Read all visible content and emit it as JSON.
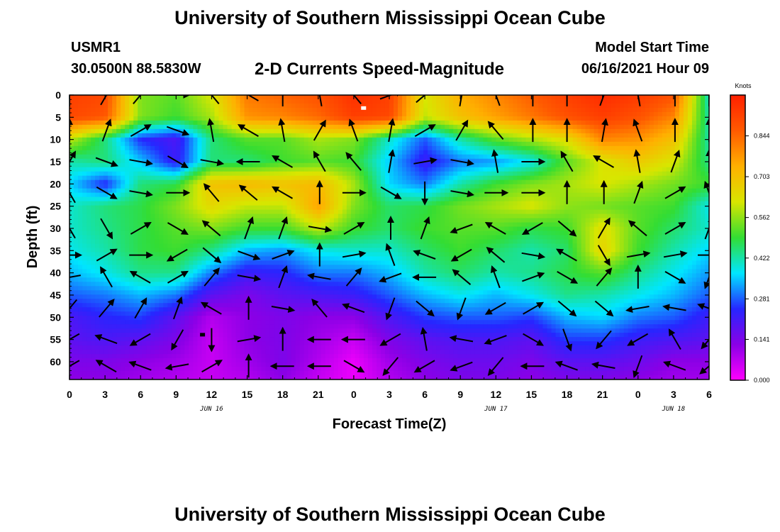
{
  "header": {
    "title": "University of Southern Mississippi Ocean Cube",
    "station": "USMR1",
    "coordinates": "30.0500N  88.5830W",
    "subtitle": "2-D Currents Speed-Magnitude",
    "model_start_label": "Model Start Time",
    "model_start_value": "06/16/2021 Hour 09"
  },
  "footer": {
    "title": "University of Southern Mississippi Ocean Cube"
  },
  "chart_data": {
    "type": "heatmap",
    "xlabel": "Forecast Time(Z)",
    "ylabel": "Depth (ft)",
    "x_ticks": [
      "0",
      "3",
      "6",
      "9",
      "12",
      "15",
      "18",
      "21",
      "0",
      "3",
      "6",
      "9",
      "12",
      "15",
      "18",
      "21",
      "0",
      "3",
      "6"
    ],
    "x_range_hours": [
      0,
      54
    ],
    "date_labels": [
      {
        "label": "JUN 16",
        "hour": 12
      },
      {
        "label": "JUN 17",
        "hour": 36
      },
      {
        "label": "JUN 18",
        "hour": 51
      }
    ],
    "y_ticks": [
      "0",
      "5",
      "10",
      "15",
      "20",
      "25",
      "30",
      "35",
      "40",
      "45",
      "50",
      "55",
      "60"
    ],
    "y_range_ft": [
      0,
      64
    ],
    "y_inverted": true,
    "colorbar": {
      "unit": "Knots",
      "ticks": [
        "0.000",
        "0.141",
        "0.281",
        "0.422",
        "0.562",
        "0.703",
        "0.844"
      ],
      "range": [
        0,
        0.985
      ],
      "colors": [
        "#ff00ff",
        "#8a00e6",
        "#2626ff",
        "#00e6ff",
        "#33dd33",
        "#d8e600",
        "#ffb000",
        "#ff5a00",
        "#ff2000"
      ]
    },
    "speed_grid": {
      "depths": [
        0,
        5,
        10,
        15,
        20,
        25,
        30,
        35,
        40,
        45,
        50,
        55,
        60,
        64
      ],
      "hours": [
        0,
        3,
        6,
        9,
        12,
        15,
        18,
        21,
        24,
        27,
        30,
        33,
        36,
        39,
        42,
        45,
        48,
        51,
        54
      ],
      "values": [
        [
          0.92,
          0.9,
          0.55,
          0.52,
          0.62,
          0.82,
          0.85,
          0.88,
          0.95,
          0.92,
          0.62,
          0.74,
          0.8,
          0.86,
          0.92,
          0.96,
          0.93,
          0.88,
          0.4
        ],
        [
          0.9,
          0.87,
          0.55,
          0.5,
          0.58,
          0.78,
          0.8,
          0.84,
          0.92,
          0.9,
          0.6,
          0.7,
          0.76,
          0.82,
          0.88,
          0.92,
          0.88,
          0.8,
          0.42
        ],
        [
          0.6,
          0.45,
          0.25,
          0.2,
          0.45,
          0.52,
          0.52,
          0.58,
          0.55,
          0.4,
          0.28,
          0.42,
          0.52,
          0.58,
          0.64,
          0.8,
          0.78,
          0.7,
          0.42
        ],
        [
          0.42,
          0.45,
          0.35,
          0.22,
          0.45,
          0.45,
          0.5,
          0.52,
          0.5,
          0.35,
          0.22,
          0.3,
          0.32,
          0.38,
          0.52,
          0.62,
          0.68,
          0.62,
          0.44
        ],
        [
          0.36,
          0.24,
          0.45,
          0.48,
          0.7,
          0.72,
          0.7,
          0.72,
          0.58,
          0.36,
          0.3,
          0.42,
          0.5,
          0.55,
          0.58,
          0.62,
          0.58,
          0.54,
          0.5
        ],
        [
          0.4,
          0.45,
          0.48,
          0.55,
          0.65,
          0.6,
          0.6,
          0.76,
          0.55,
          0.46,
          0.48,
          0.54,
          0.58,
          0.62,
          0.56,
          0.54,
          0.52,
          0.5,
          0.38
        ],
        [
          0.4,
          0.44,
          0.48,
          0.52,
          0.55,
          0.5,
          0.5,
          0.6,
          0.5,
          0.46,
          0.5,
          0.52,
          0.52,
          0.48,
          0.5,
          0.64,
          0.52,
          0.46,
          0.4
        ],
        [
          0.38,
          0.42,
          0.48,
          0.5,
          0.44,
          0.34,
          0.32,
          0.38,
          0.4,
          0.4,
          0.46,
          0.5,
          0.46,
          0.42,
          0.46,
          0.66,
          0.5,
          0.42,
          0.36
        ],
        [
          0.34,
          0.38,
          0.44,
          0.44,
          0.3,
          0.22,
          0.24,
          0.3,
          0.3,
          0.34,
          0.42,
          0.46,
          0.42,
          0.44,
          0.48,
          0.52,
          0.44,
          0.38,
          0.32
        ],
        [
          0.28,
          0.3,
          0.34,
          0.3,
          0.18,
          0.14,
          0.18,
          0.2,
          0.22,
          0.28,
          0.34,
          0.38,
          0.34,
          0.38,
          0.44,
          0.42,
          0.38,
          0.34,
          0.28
        ],
        [
          0.2,
          0.24,
          0.26,
          0.18,
          0.08,
          0.12,
          0.14,
          0.12,
          0.12,
          0.2,
          0.26,
          0.28,
          0.28,
          0.26,
          0.34,
          0.36,
          0.3,
          0.28,
          0.22
        ],
        [
          0.18,
          0.2,
          0.18,
          0.14,
          0.06,
          0.12,
          0.14,
          0.1,
          0.06,
          0.14,
          0.18,
          0.2,
          0.2,
          0.18,
          0.26,
          0.26,
          0.22,
          0.2,
          0.18
        ],
        [
          0.14,
          0.14,
          0.12,
          0.1,
          0.06,
          0.1,
          0.14,
          0.08,
          0.02,
          0.1,
          0.14,
          0.16,
          0.16,
          0.14,
          0.18,
          0.18,
          0.16,
          0.12,
          0.12
        ],
        [
          0.12,
          0.12,
          0.1,
          0.08,
          0.06,
          0.08,
          0.12,
          0.06,
          0.02,
          0.08,
          0.12,
          0.14,
          0.14,
          0.12,
          0.14,
          0.14,
          0.12,
          0.1,
          0.1
        ]
      ]
    },
    "vector_directions_deg": {
      "hours": [
        0,
        3,
        6,
        9,
        12,
        15,
        18,
        21,
        24,
        27,
        30,
        33,
        36,
        39,
        42,
        45,
        48,
        51,
        54
      ],
      "depths": [
        0,
        8,
        15,
        22,
        30,
        36,
        41,
        48,
        55,
        61
      ],
      "values": [
        [
          0,
          30,
          40,
          90,
          320,
          300,
          0,
          350,
          320,
          70,
          50,
          10,
          340,
          0,
          0,
          20,
          350,
          0,
          0
        ],
        [
          0,
          20,
          60,
          110,
          350,
          300,
          350,
          30,
          340,
          10,
          60,
          30,
          320,
          0,
          0,
          10,
          340,
          0,
          0
        ],
        [
          30,
          110,
          100,
          120,
          100,
          270,
          300,
          330,
          320,
          10,
          80,
          100,
          350,
          90,
          330,
          300,
          350,
          20,
          0
        ],
        [
          330,
          120,
          100,
          90,
          320,
          310,
          300,
          0,
          90,
          120,
          180,
          100,
          90,
          90,
          0,
          0,
          20,
          60,
          340
        ],
        [
          330,
          150,
          60,
          120,
          310,
          20,
          20,
          100,
          60,
          0,
          20,
          250,
          300,
          240,
          130,
          30,
          310,
          60,
          20
        ],
        [
          90,
          60,
          90,
          240,
          130,
          110,
          70,
          0,
          80,
          340,
          290,
          240,
          310,
          100,
          300,
          150,
          80,
          80,
          90
        ],
        [
          260,
          330,
          300,
          60,
          40,
          100,
          20,
          280,
          40,
          250,
          270,
          310,
          340,
          70,
          120,
          40,
          0,
          120,
          200
        ],
        [
          220,
          40,
          30,
          20,
          300,
          0,
          100,
          320,
          290,
          200,
          130,
          200,
          240,
          60,
          130,
          130,
          260,
          280,
          290
        ],
        [
          240,
          290,
          240,
          210,
          180,
          80,
          0,
          270,
          270,
          240,
          350,
          280,
          250,
          120,
          160,
          220,
          240,
          330,
          220
        ],
        [
          240,
          300,
          290,
          260,
          60,
          0,
          270,
          270,
          120,
          220,
          240,
          250,
          220,
          270,
          290,
          280,
          200,
          290,
          230
        ]
      ]
    },
    "markers": [
      {
        "hour": 24.8,
        "depth": 3,
        "color": "#ffffff"
      },
      {
        "hour": 11.2,
        "depth": 54,
        "color": "#000000"
      }
    ]
  }
}
